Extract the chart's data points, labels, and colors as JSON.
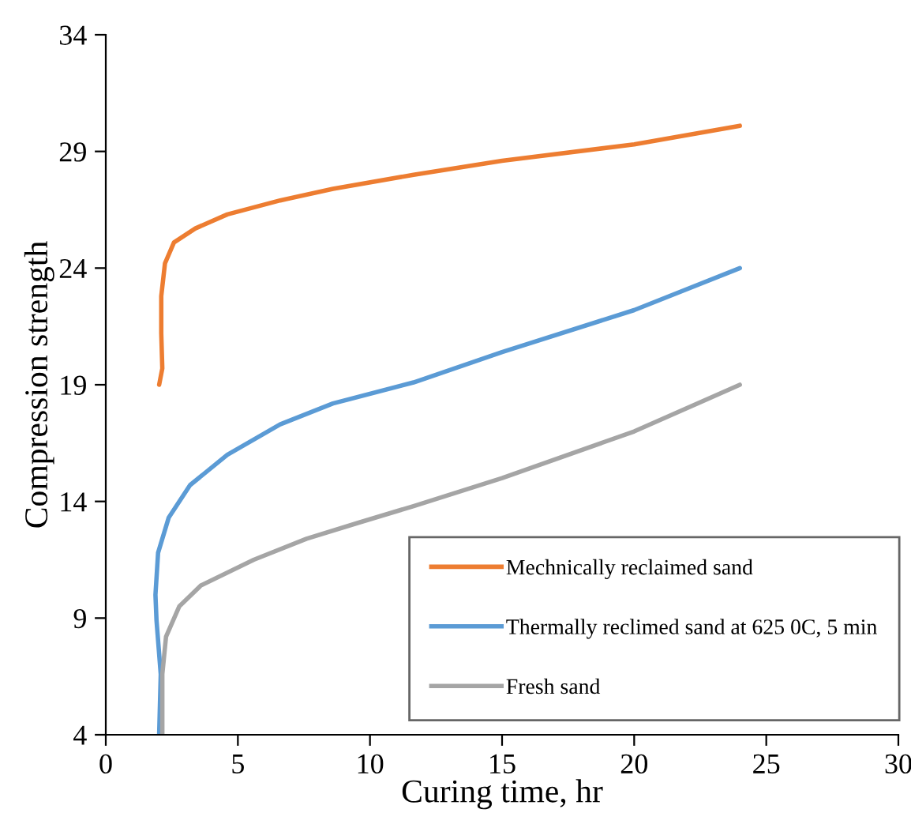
{
  "chart_data": {
    "type": "line",
    "xlabel": "Curing time, hr",
    "ylabel": "Compression strength",
    "xlim": [
      0,
      30
    ],
    "ylim": [
      4,
      34
    ],
    "xticks": [
      0,
      5,
      10,
      15,
      20,
      25,
      30
    ],
    "yticks": [
      4,
      9,
      14,
      19,
      24,
      29,
      34
    ],
    "grid": false,
    "legend": "bottom right",
    "marker": "none",
    "line_style": "solid",
    "series": [
      {
        "name": "Mechnically reclaimed sand",
        "color": "#ed7d31",
        "x": [
          2.02,
          2.14,
          2.1,
          2.1,
          2.24,
          2.58,
          3.39,
          4.6,
          6.6,
          8.6,
          11.65,
          15,
          20,
          24
        ],
        "values": [
          19,
          19.7,
          21.2,
          22.8,
          24.2,
          25.1,
          25.7,
          26.3,
          26.9,
          27.4,
          28.0,
          28.6,
          29.3,
          30.1
        ]
      },
      {
        "name": "Thermally reclimed sand at 625 0C, 5 min",
        "color": "#5b9bd5",
        "x": [
          2.02,
          2.08,
          1.92,
          1.88,
          1.98,
          2.38,
          3.19,
          4.6,
          6.6,
          8.6,
          11.65,
          15,
          20,
          24
        ],
        "values": [
          4,
          6.6,
          8.9,
          10.0,
          11.8,
          13.3,
          14.7,
          16.0,
          17.3,
          18.2,
          19.1,
          20.4,
          22.2,
          24
        ]
      },
      {
        "name": "Fresh sand",
        "color": "#a5a5a5",
        "x": [
          2.14,
          2.14,
          2.28,
          2.78,
          3.6,
          5.6,
          7.6,
          9.6,
          11.65,
          15,
          20,
          24
        ],
        "values": [
          4,
          6.6,
          8.2,
          9.5,
          10.4,
          11.5,
          12.4,
          13.1,
          13.8,
          15.0,
          17.0,
          19
        ]
      }
    ]
  }
}
